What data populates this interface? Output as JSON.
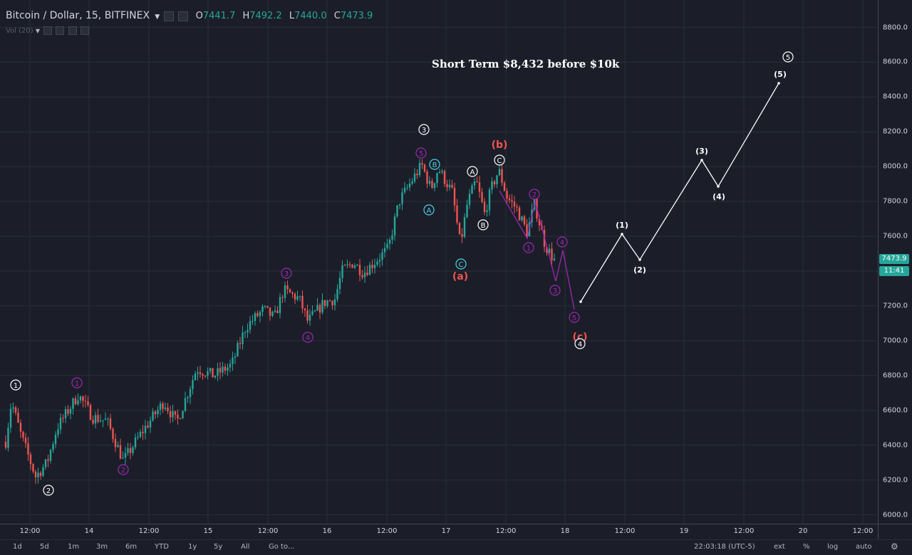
{
  "symbol": {
    "title": "Bitcoin / Dollar, 15, BITFINEX",
    "dropdown_icon": "caret-down-icon"
  },
  "ohlc": {
    "o_label": "O",
    "o": "7441.7",
    "h_label": "H",
    "h": "7492.2",
    "l_label": "L",
    "l": "7440.0",
    "c_label": "C",
    "c": "7473.9"
  },
  "volume": {
    "label": "Vol (20)"
  },
  "headline": "Short Term $8,432 before $10k",
  "price_axis": {
    "ticks": [
      "8800.0",
      "8600.0",
      "8400.0",
      "8200.0",
      "8000.0",
      "7800.0",
      "7600.0",
      "7400.0",
      "7200.0",
      "7000.0",
      "6800.0",
      "6600.0",
      "6400.0",
      "6200.0",
      "6000.0"
    ]
  },
  "time_axis": {
    "ticks": [
      "12:00",
      "14",
      "12:00",
      "15",
      "12:00",
      "16",
      "12:00",
      "17",
      "12:00",
      "18",
      "12:00",
      "19",
      "12:00",
      "20",
      "12:00"
    ]
  },
  "last_price": {
    "value": "7473.9",
    "countdown": "11:41",
    "color": "#26a69a"
  },
  "ranges": [
    "1d",
    "5d",
    "1m",
    "3m",
    "6m",
    "YTD",
    "1y",
    "5y",
    "All",
    "Go to..."
  ],
  "status": {
    "clock": "22:03:18 (UTC-5)",
    "ext": "ext",
    "percent": "%",
    "log": "log",
    "auto": "auto",
    "settings_icon": "gear-icon"
  },
  "colors": {
    "background": "#1b1e29",
    "up": "#26a69a",
    "down": "#ef5350",
    "wave_purple": "#9c27b0",
    "wave_cyan": "#4dd0e1",
    "wave_red": "#ef5350",
    "projection": "#ffffff"
  },
  "wave_labels": [
    "1",
    "2",
    "1",
    "2",
    "3",
    "4",
    "5",
    "B",
    "A",
    "C",
    "3",
    "A",
    "B",
    "C",
    "(b)",
    "(a)",
    "2",
    "1",
    "4",
    "3",
    "5",
    "(c)",
    "4",
    "(1)",
    "(2)",
    "(3)",
    "(4)",
    "(5)",
    "5"
  ]
}
